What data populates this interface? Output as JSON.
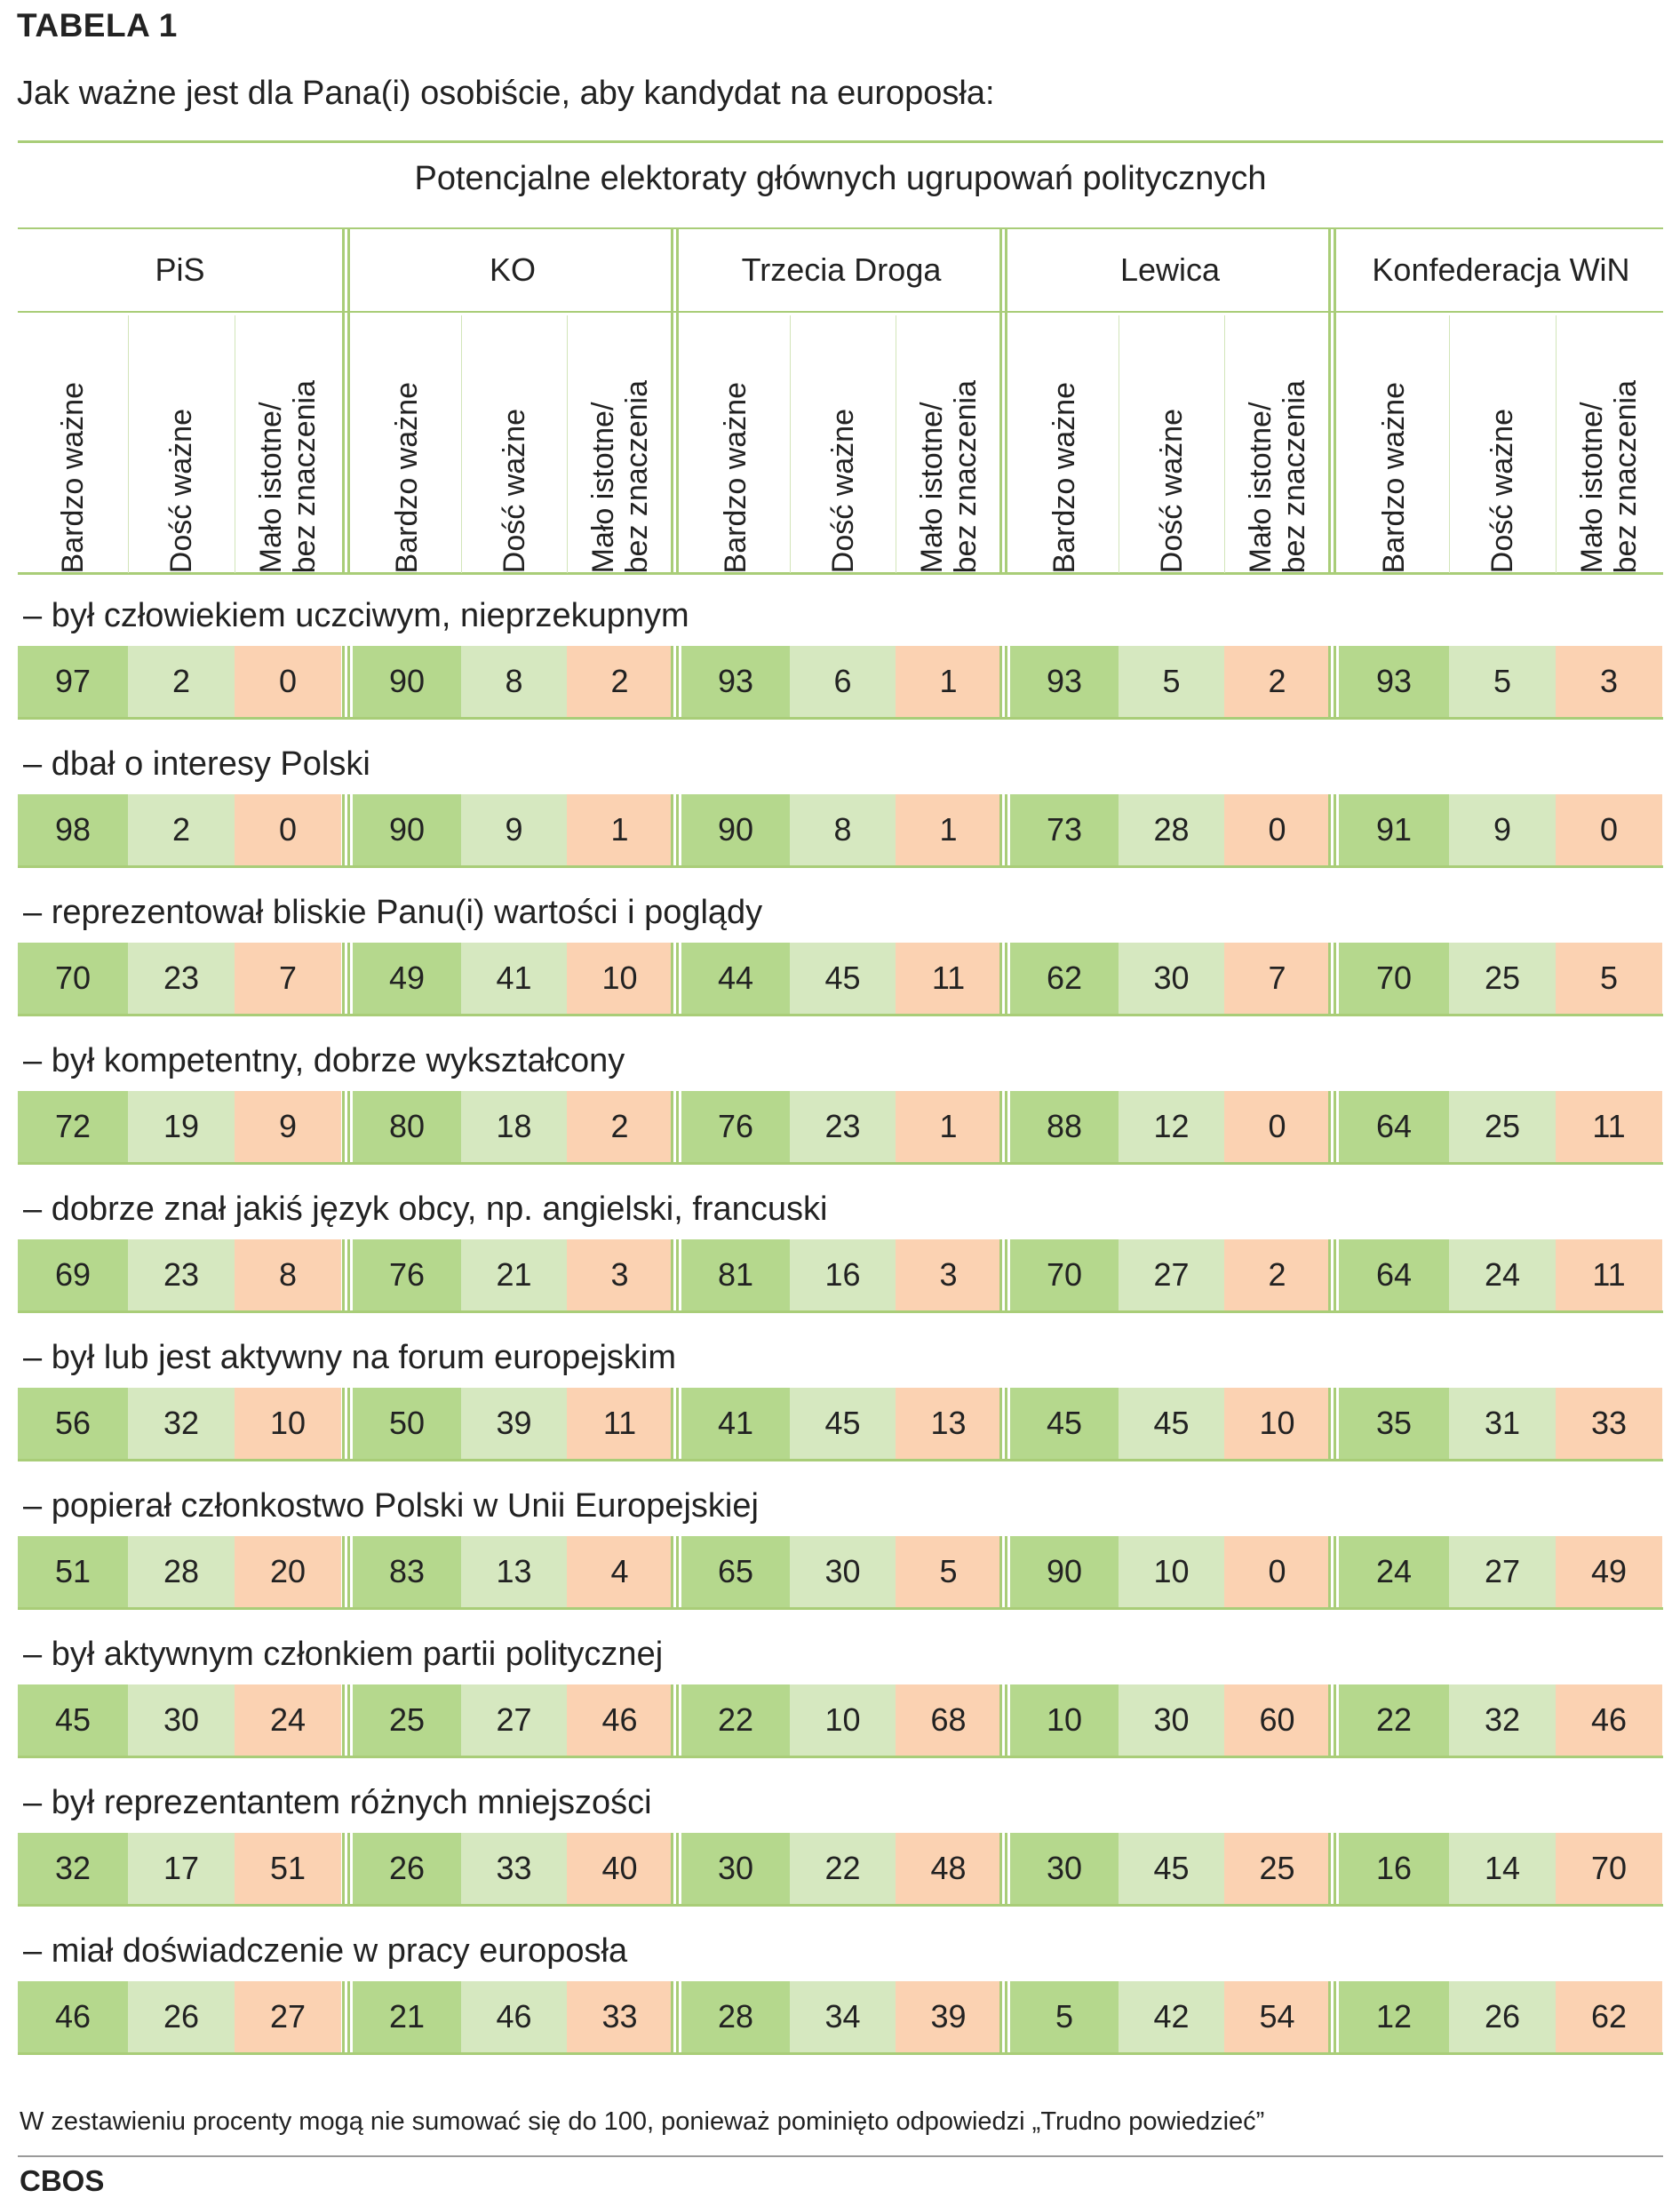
{
  "title": {
    "table_label": "TABELA 1",
    "question": "Jak ważne jest dla Pana(i) osobiście, aby kandydat na europosła:"
  },
  "header": {
    "group": "Potencjalne elektoraty głównych ugrupowań politycznych",
    "parties": [
      "PiS",
      "KO",
      "Trzecia Droga",
      "Lewica",
      "Konfederacja WiN"
    ],
    "sub_columns": [
      "Bardzo ważne",
      "Dość ważne",
      "Mało istotne/\nbez znaczenia"
    ]
  },
  "rows": [
    {
      "label": "– był człowiekiem uczciwym, nieprzekupnym",
      "values": [
        97,
        2,
        0,
        90,
        8,
        2,
        93,
        6,
        1,
        93,
        5,
        2,
        93,
        5,
        3
      ]
    },
    {
      "label": "– dbał o interesy Polski",
      "values": [
        98,
        2,
        0,
        90,
        9,
        1,
        90,
        8,
        1,
        73,
        28,
        0,
        91,
        9,
        0
      ]
    },
    {
      "label": "– reprezentował bliskie Panu(i) wartości i poglądy",
      "values": [
        70,
        23,
        7,
        49,
        41,
        10,
        44,
        45,
        11,
        62,
        30,
        7,
        70,
        25,
        5
      ]
    },
    {
      "label": "– był kompetentny, dobrze wykształcony",
      "values": [
        72,
        19,
        9,
        80,
        18,
        2,
        76,
        23,
        1,
        88,
        12,
        0,
        64,
        25,
        11
      ]
    },
    {
      "label": "– dobrze znał jakiś język obcy, np. angielski, francuski",
      "values": [
        69,
        23,
        8,
        76,
        21,
        3,
        81,
        16,
        3,
        70,
        27,
        2,
        64,
        24,
        11
      ]
    },
    {
      "label": "– był lub jest aktywny na forum europejskim",
      "values": [
        56,
        32,
        10,
        50,
        39,
        11,
        41,
        45,
        13,
        45,
        45,
        10,
        35,
        31,
        33
      ]
    },
    {
      "label": "– popierał członkostwo Polski w Unii Europejskiej",
      "values": [
        51,
        28,
        20,
        83,
        13,
        4,
        65,
        30,
        5,
        90,
        10,
        0,
        24,
        27,
        49
      ]
    },
    {
      "label": "– był aktywnym członkiem partii politycznej",
      "values": [
        45,
        30,
        24,
        25,
        27,
        46,
        22,
        10,
        68,
        10,
        30,
        60,
        22,
        32,
        46
      ]
    },
    {
      "label": "– był reprezentantem różnych mniejszości",
      "values": [
        32,
        17,
        51,
        26,
        33,
        40,
        30,
        22,
        48,
        30,
        45,
        25,
        16,
        14,
        70
      ]
    },
    {
      "label": "– miał doświadczenie w pracy europosła",
      "values": [
        46,
        26,
        27,
        21,
        46,
        33,
        28,
        34,
        39,
        5,
        42,
        54,
        12,
        26,
        62
      ]
    }
  ],
  "colors": {
    "line": "#a9cd78",
    "very_important": "#b5d88d",
    "fairly_important": "#d6e8c0",
    "not_important": "#fbd2b2"
  },
  "footer": {
    "note": "W zestawieniu procenty mogą nie sumować się do 100, ponieważ pominięto odpowiedzi „Trudno powiedzieć”",
    "source": "CBOS"
  }
}
